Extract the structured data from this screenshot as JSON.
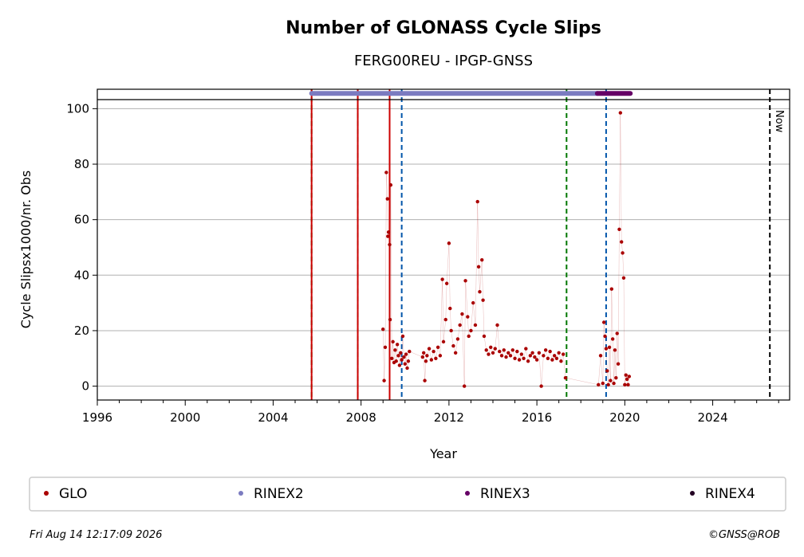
{
  "chart_data": {
    "type": "scatter",
    "title": "Number of GLONASS Cycle Slips",
    "subtitle": "FERG00REU - IPGP-GNSS",
    "xlabel": "Year",
    "ylabel": "Cycle Slipsx1000/nr. Obs",
    "xlim": [
      1996,
      2027.5
    ],
    "ylim": [
      -5,
      107
    ],
    "x_ticks": [
      1996,
      2000,
      2004,
      2008,
      2012,
      2016,
      2020,
      2024
    ],
    "y_ticks": [
      0,
      20,
      40,
      60,
      80,
      100
    ],
    "grid": "horizontal",
    "series": [
      {
        "name": "GLO",
        "color": "#aa0000",
        "points": [
          [
            2009.0,
            20.5
          ],
          [
            2009.05,
            2.0
          ],
          [
            2009.1,
            14.0
          ],
          [
            2009.15,
            77.0
          ],
          [
            2009.2,
            67.5
          ],
          [
            2009.22,
            54.0
          ],
          [
            2009.25,
            55.5
          ],
          [
            2009.3,
            51.0
          ],
          [
            2009.32,
            24.0
          ],
          [
            2009.35,
            72.5
          ],
          [
            2009.4,
            10.0
          ],
          [
            2009.45,
            16.0
          ],
          [
            2009.5,
            8.5
          ],
          [
            2009.55,
            13.0
          ],
          [
            2009.6,
            9.0
          ],
          [
            2009.65,
            15.0
          ],
          [
            2009.7,
            11.0
          ],
          [
            2009.75,
            7.5
          ],
          [
            2009.8,
            12.0
          ],
          [
            2009.85,
            9.5
          ],
          [
            2009.9,
            18.0
          ],
          [
            2009.95,
            10.5
          ],
          [
            2010.0,
            8.0
          ],
          [
            2010.05,
            11.5
          ],
          [
            2010.1,
            6.5
          ],
          [
            2010.15,
            9.0
          ],
          [
            2010.2,
            12.5
          ],
          [
            2010.8,
            10.5
          ],
          [
            2010.85,
            12.0
          ],
          [
            2010.9,
            2.0
          ],
          [
            2010.95,
            9.0
          ],
          [
            2011.0,
            11.0
          ],
          [
            2011.1,
            13.5
          ],
          [
            2011.2,
            9.5
          ],
          [
            2011.3,
            12.5
          ],
          [
            2011.4,
            10.0
          ],
          [
            2011.5,
            14.0
          ],
          [
            2011.6,
            11.0
          ],
          [
            2011.7,
            38.5
          ],
          [
            2011.75,
            16.0
          ],
          [
            2011.85,
            24.0
          ],
          [
            2011.9,
            37.0
          ],
          [
            2012.0,
            51.5
          ],
          [
            2012.05,
            28.0
          ],
          [
            2012.1,
            20.0
          ],
          [
            2012.2,
            14.5
          ],
          [
            2012.3,
            12.0
          ],
          [
            2012.4,
            17.0
          ],
          [
            2012.5,
            22.0
          ],
          [
            2012.6,
            26.0
          ],
          [
            2012.7,
            0.0
          ],
          [
            2012.75,
            38.0
          ],
          [
            2012.85,
            25.0
          ],
          [
            2012.9,
            18.0
          ],
          [
            2013.0,
            20.0
          ],
          [
            2013.1,
            30.0
          ],
          [
            2013.2,
            22.0
          ],
          [
            2013.3,
            66.5
          ],
          [
            2013.35,
            43.0
          ],
          [
            2013.4,
            34.0
          ],
          [
            2013.5,
            45.5
          ],
          [
            2013.55,
            31.0
          ],
          [
            2013.6,
            18.0
          ],
          [
            2013.7,
            13.0
          ],
          [
            2013.8,
            11.5
          ],
          [
            2013.9,
            14.0
          ],
          [
            2014.0,
            12.0
          ],
          [
            2014.1,
            13.5
          ],
          [
            2014.2,
            22.0
          ],
          [
            2014.3,
            12.5
          ],
          [
            2014.4,
            11.0
          ],
          [
            2014.5,
            13.0
          ],
          [
            2014.6,
            10.5
          ],
          [
            2014.7,
            12.0
          ],
          [
            2014.8,
            11.0
          ],
          [
            2014.9,
            13.0
          ],
          [
            2015.0,
            10.0
          ],
          [
            2015.1,
            12.5
          ],
          [
            2015.2,
            9.5
          ],
          [
            2015.3,
            11.5
          ],
          [
            2015.4,
            10.0
          ],
          [
            2015.5,
            13.5
          ],
          [
            2015.6,
            9.0
          ],
          [
            2015.7,
            11.0
          ],
          [
            2015.8,
            12.0
          ],
          [
            2015.9,
            10.5
          ],
          [
            2016.0,
            9.5
          ],
          [
            2016.1,
            12.0
          ],
          [
            2016.2,
            0.0
          ],
          [
            2016.3,
            11.0
          ],
          [
            2016.4,
            13.0
          ],
          [
            2016.5,
            10.0
          ],
          [
            2016.6,
            12.5
          ],
          [
            2016.7,
            9.5
          ],
          [
            2016.8,
            11.0
          ],
          [
            2016.9,
            10.0
          ],
          [
            2017.0,
            12.0
          ],
          [
            2017.1,
            9.0
          ],
          [
            2017.2,
            11.5
          ],
          [
            2017.3,
            3.0
          ],
          [
            2018.8,
            0.5
          ],
          [
            2018.9,
            11.0
          ],
          [
            2019.0,
            1.0
          ],
          [
            2019.05,
            23.0
          ],
          [
            2019.1,
            18.0
          ],
          [
            2019.15,
            13.5
          ],
          [
            2019.2,
            5.5
          ],
          [
            2019.25,
            0.5
          ],
          [
            2019.3,
            14.0
          ],
          [
            2019.35,
            2.0
          ],
          [
            2019.4,
            35.0
          ],
          [
            2019.45,
            17.0
          ],
          [
            2019.5,
            1.0
          ],
          [
            2019.55,
            13.0
          ],
          [
            2019.6,
            3.0
          ],
          [
            2019.65,
            19.0
          ],
          [
            2019.7,
            8.0
          ],
          [
            2019.75,
            56.5
          ],
          [
            2019.8,
            98.5
          ],
          [
            2019.85,
            52.0
          ],
          [
            2019.9,
            48.0
          ],
          [
            2019.95,
            39.0
          ],
          [
            2020.0,
            0.5
          ],
          [
            2020.05,
            4.0
          ],
          [
            2020.1,
            2.5
          ],
          [
            2020.15,
            0.5
          ],
          [
            2020.2,
            3.5
          ]
        ]
      },
      {
        "name": "RINEX2",
        "color": "#7b7bc0",
        "segments": [
          [
            2005.75,
            2018.75
          ]
        ],
        "y": 105.5
      },
      {
        "name": "RINEX3",
        "color": "#660066",
        "segments": [
          [
            2018.75,
            2020.25
          ]
        ],
        "y": 105.5
      },
      {
        "name": "RINEX4",
        "color": "#220022",
        "segments": [],
        "y": 105.5
      }
    ],
    "vertical_lines": [
      {
        "x": 2005.75,
        "color": "#007700",
        "style": "dashed"
      },
      {
        "x": 2005.75,
        "color": "#cc0000",
        "style": "solid"
      },
      {
        "x": 2007.85,
        "color": "#007700",
        "style": "dashed"
      },
      {
        "x": 2007.85,
        "color": "#cc0000",
        "style": "solid"
      },
      {
        "x": 2009.3,
        "color": "#cc0000",
        "style": "solid"
      },
      {
        "x": 2009.85,
        "color": "#0055aa",
        "style": "dashed"
      },
      {
        "x": 2017.35,
        "color": "#007700",
        "style": "dashed"
      },
      {
        "x": 2019.15,
        "color": "#0055aa",
        "style": "dashed"
      },
      {
        "x": 2026.6,
        "color": "#000000",
        "style": "dashed",
        "label": "Now"
      }
    ],
    "legend": {
      "placement": "bottom",
      "entries": [
        "GLO",
        "RINEX2",
        "RINEX3",
        "RINEX4"
      ]
    }
  },
  "footer": {
    "timestamp": "Fri Aug 14 12:17:09 2026",
    "copyright": "©GNSS@ROB"
  }
}
